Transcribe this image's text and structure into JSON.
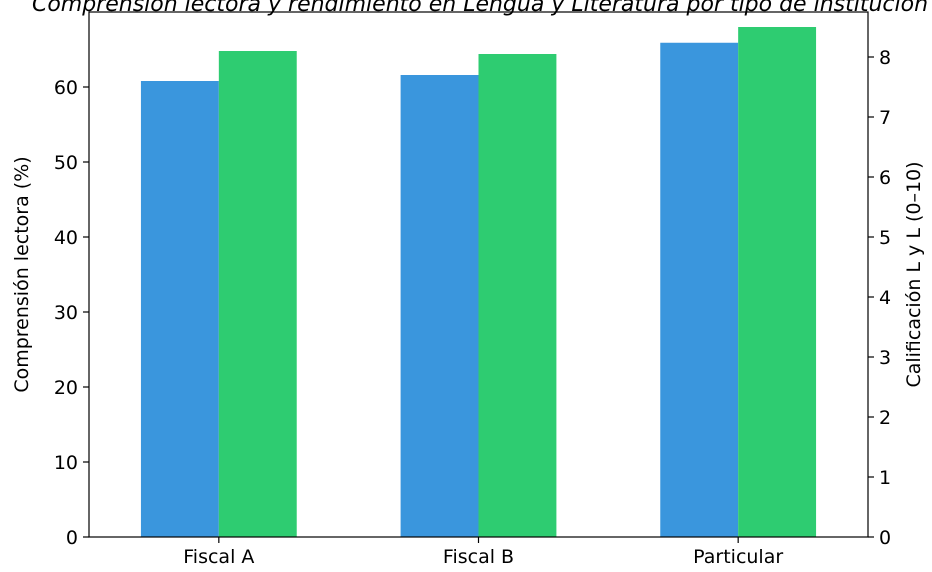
{
  "chart_data": {
    "type": "bar",
    "title": "Comprensión lectora y rendimiento en Lengua y Literatura por tipo de institución",
    "categories": [
      "Fiscal A",
      "Fiscal B",
      "Particular"
    ],
    "ylabel_left": "Comprensión lectora (%)",
    "ylabel_right": "Calificación L y L (0–10)",
    "y_left": {
      "lim": [
        0,
        70
      ],
      "ticks": [
        0,
        10,
        20,
        30,
        40,
        50,
        60
      ]
    },
    "y_right": {
      "lim": [
        0,
        8.75
      ],
      "ticks": [
        0,
        1,
        2,
        3,
        4,
        5,
        6,
        7,
        8
      ]
    },
    "grid": false,
    "series": [
      {
        "axis": "left",
        "color": "#3a96dd",
        "values": [
          60.8,
          61.6,
          65.9
        ]
      },
      {
        "axis": "right",
        "color": "#2ecc71",
        "values": [
          8.1,
          8.05,
          8.5
        ]
      }
    ]
  }
}
